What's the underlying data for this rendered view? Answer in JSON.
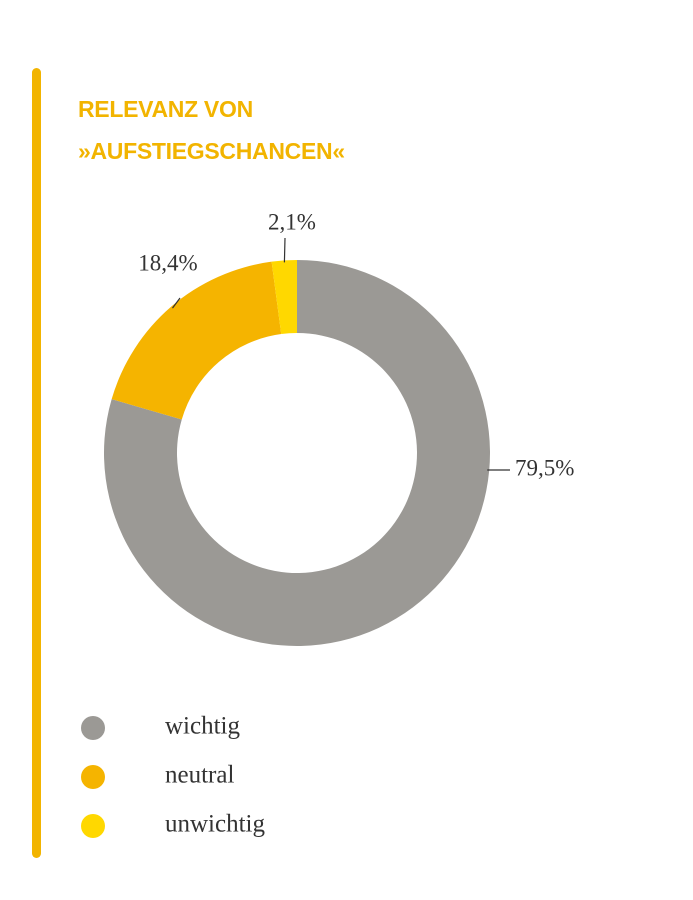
{
  "chart_data": {
    "type": "donut",
    "title": "RELEVANZ VON »AUFSTIEGSCHANCEN«",
    "categories": [
      "wichtig",
      "neutral",
      "unwichtig"
    ],
    "values": [
      79.5,
      18.4,
      2.1
    ],
    "value_labels": [
      "79,5%",
      "18,4%",
      "2,1%"
    ],
    "colors": [
      "#9b9995",
      "#f5b400",
      "#ffd800"
    ],
    "legend": "bottom"
  }
}
